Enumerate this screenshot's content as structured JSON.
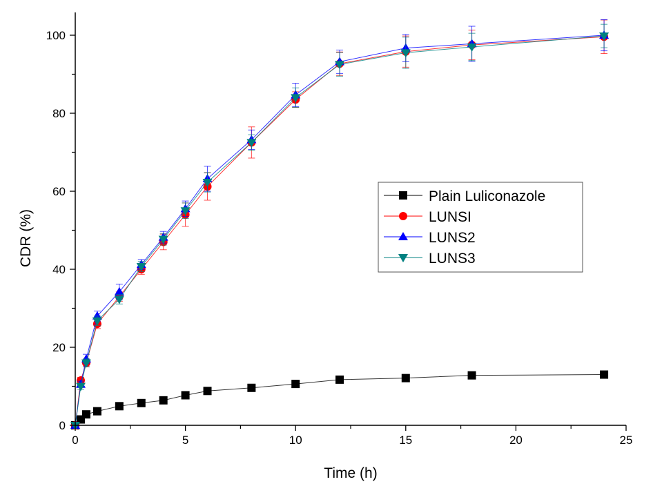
{
  "chart_data": {
    "type": "line",
    "title": "",
    "xlabel": "Time (h)",
    "ylabel": "CDR (%)",
    "xlim": [
      0,
      25
    ],
    "ylim": [
      0,
      105
    ],
    "xticks": [
      0,
      5,
      10,
      15,
      20,
      25
    ],
    "yticks": [
      0,
      20,
      40,
      60,
      80,
      100
    ],
    "grid": false,
    "legend_position": "center-right",
    "x": [
      0,
      0.25,
      0.5,
      1,
      2,
      3,
      4,
      5,
      6,
      8,
      10,
      12,
      15,
      18,
      24
    ],
    "series": [
      {
        "name": "Plain Luliconazole",
        "color": "#000000",
        "marker": "square",
        "values": [
          0,
          1.5,
          2.8,
          3.6,
          4.9,
          5.7,
          6.4,
          7.7,
          8.8,
          9.6,
          10.6,
          11.7,
          12.1,
          12.8,
          13.0
        ],
        "errors": [
          0,
          0,
          0,
          0,
          0,
          0,
          0,
          0,
          0,
          0,
          0,
          0,
          0,
          0,
          0
        ]
      },
      {
        "name": "LUNSI",
        "color": "#ff0000",
        "marker": "circle",
        "values": [
          0,
          11.5,
          16.0,
          26.0,
          33.0,
          40.0,
          47.0,
          54.0,
          61.2,
          72.5,
          83.5,
          92.7,
          95.8,
          97.5,
          99.6
        ],
        "errors": [
          0,
          0.8,
          1.0,
          1.2,
          1.2,
          1.3,
          2.0,
          3.0,
          3.5,
          4.0,
          2.0,
          3.0,
          4.0,
          3.8,
          4.3
        ]
      },
      {
        "name": "LUNS2",
        "color": "#0000ff",
        "marker": "triangle-up",
        "values": [
          0,
          10.5,
          17.0,
          28.0,
          34.2,
          41.2,
          48.2,
          55.5,
          63.2,
          73.2,
          84.7,
          93.2,
          96.7,
          97.8,
          100.0
        ],
        "errors": [
          0,
          0.8,
          1.2,
          1.3,
          2.0,
          1.3,
          1.5,
          2.0,
          3.2,
          2.5,
          3.0,
          3.0,
          3.5,
          4.5,
          4.0
        ]
      },
      {
        "name": "LUNS3",
        "color": "#008080",
        "marker": "triangle-down",
        "values": [
          0,
          10.0,
          16.0,
          26.8,
          32.3,
          40.7,
          47.7,
          55.0,
          62.3,
          72.5,
          84.0,
          92.5,
          95.5,
          97.0,
          99.8
        ],
        "errors": [
          0,
          0.8,
          1.0,
          1.2,
          1.2,
          1.3,
          1.5,
          2.0,
          2.5,
          2.0,
          2.5,
          3.0,
          4.0,
          3.5,
          3.0
        ]
      }
    ]
  }
}
